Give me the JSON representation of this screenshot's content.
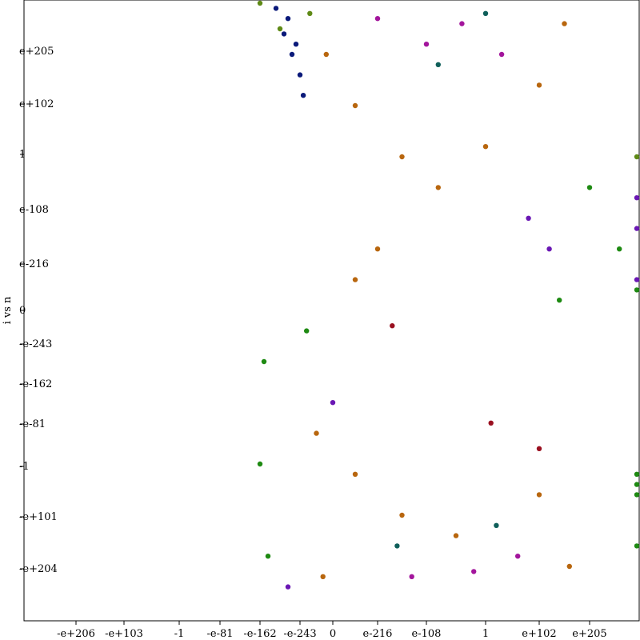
{
  "chart_data": {
    "type": "scatter",
    "ylabel": "i vs n",
    "xlabel": "",
    "grid": false,
    "legend": "none",
    "x_ticks": [
      "-e+206",
      "-e+103",
      "-1",
      "-e-81",
      "-e-162",
      "-e-243",
      "0",
      "e-216",
      "e-108",
      "1",
      "e+102",
      "e+205"
    ],
    "y_ticks": [
      "e+205",
      "e+102",
      "1",
      "e-108",
      "e-216",
      "0",
      "-e-243",
      "-e-162",
      "-e-81",
      "-1",
      "-e+101",
      "-e+204"
    ],
    "colors": {
      "navy": "#0b1a7a",
      "olive": "#5f8a16",
      "orange": "#b8660e",
      "magenta": "#a3159c",
      "teal": "#0f5f5a",
      "green": "#1e8a12",
      "purple": "#6a17b4",
      "darkred": "#9a1020"
    },
    "series": [
      {
        "color": "navy",
        "points": [
          [
            -1.6,
            2.95
          ],
          [
            -1.4,
            2.7
          ],
          [
            -1.2,
            2.5
          ],
          [
            -1.0,
            2.3
          ],
          [
            -1.3,
            2.85
          ],
          [
            -1.1,
            2.6
          ],
          [
            -0.9,
            2.1
          ]
        ]
      },
      {
        "color": "orange",
        "points": [
          [
            -0.2,
            2.5
          ],
          [
            0.5,
            2.0
          ],
          [
            1.5,
            1.5
          ],
          [
            2.2,
            1.2
          ],
          [
            3.0,
            1.6
          ],
          [
            4.0,
            2.2
          ],
          [
            4.5,
            2.8
          ],
          [
            1.0,
            0.6
          ],
          [
            0.5,
            0.3
          ],
          [
            -0.5,
            -1.2
          ],
          [
            0.5,
            -1.6
          ],
          [
            1.5,
            -2.0
          ],
          [
            2.5,
            -2.2
          ],
          [
            4.0,
            -1.8
          ],
          [
            4.6,
            -2.5
          ],
          [
            -0.3,
            -2.6
          ]
        ]
      },
      {
        "color": "magenta",
        "points": [
          [
            1.0,
            2.85
          ],
          [
            2.0,
            2.6
          ],
          [
            2.6,
            2.8
          ],
          [
            3.3,
            2.5
          ],
          [
            1.7,
            -2.6
          ],
          [
            2.8,
            -2.55
          ],
          [
            3.6,
            -2.4
          ]
        ]
      },
      {
        "color": "teal",
        "points": [
          [
            2.2,
            2.4
          ],
          [
            3.0,
            2.9
          ],
          [
            1.4,
            -2.3
          ],
          [
            3.2,
            -2.1
          ]
        ]
      },
      {
        "color": "green",
        "points": [
          [
            5.0,
            1.2
          ],
          [
            5.6,
            0.6
          ],
          [
            6.3,
            0.2
          ],
          [
            4.4,
            0.1
          ],
          [
            -1.9,
            -0.5
          ],
          [
            -0.8,
            -0.2
          ],
          [
            -2.0,
            -1.5
          ],
          [
            -1.8,
            -2.4
          ],
          [
            6.3,
            -1.6
          ],
          [
            6.9,
            -2.3
          ],
          [
            7.4,
            -1.7
          ],
          [
            8.0,
            -1.8
          ]
        ]
      },
      {
        "color": "purple",
        "points": [
          [
            3.8,
            0.9
          ],
          [
            4.2,
            0.6
          ],
          [
            6.7,
            0.8
          ],
          [
            7.2,
            0.3
          ],
          [
            7.8,
            1.1
          ],
          [
            -1.3,
            -2.7
          ],
          [
            0.0,
            -0.9
          ]
        ]
      },
      {
        "color": "olive",
        "points": [
          [
            -2.0,
            3.0
          ],
          [
            -1.5,
            2.75
          ],
          [
            -0.7,
            2.9
          ],
          [
            6.1,
            1.5
          ]
        ]
      },
      {
        "color": "darkred",
        "points": [
          [
            1.3,
            -0.15
          ],
          [
            4.0,
            -1.35
          ],
          [
            3.1,
            -1.1
          ]
        ]
      }
    ]
  }
}
